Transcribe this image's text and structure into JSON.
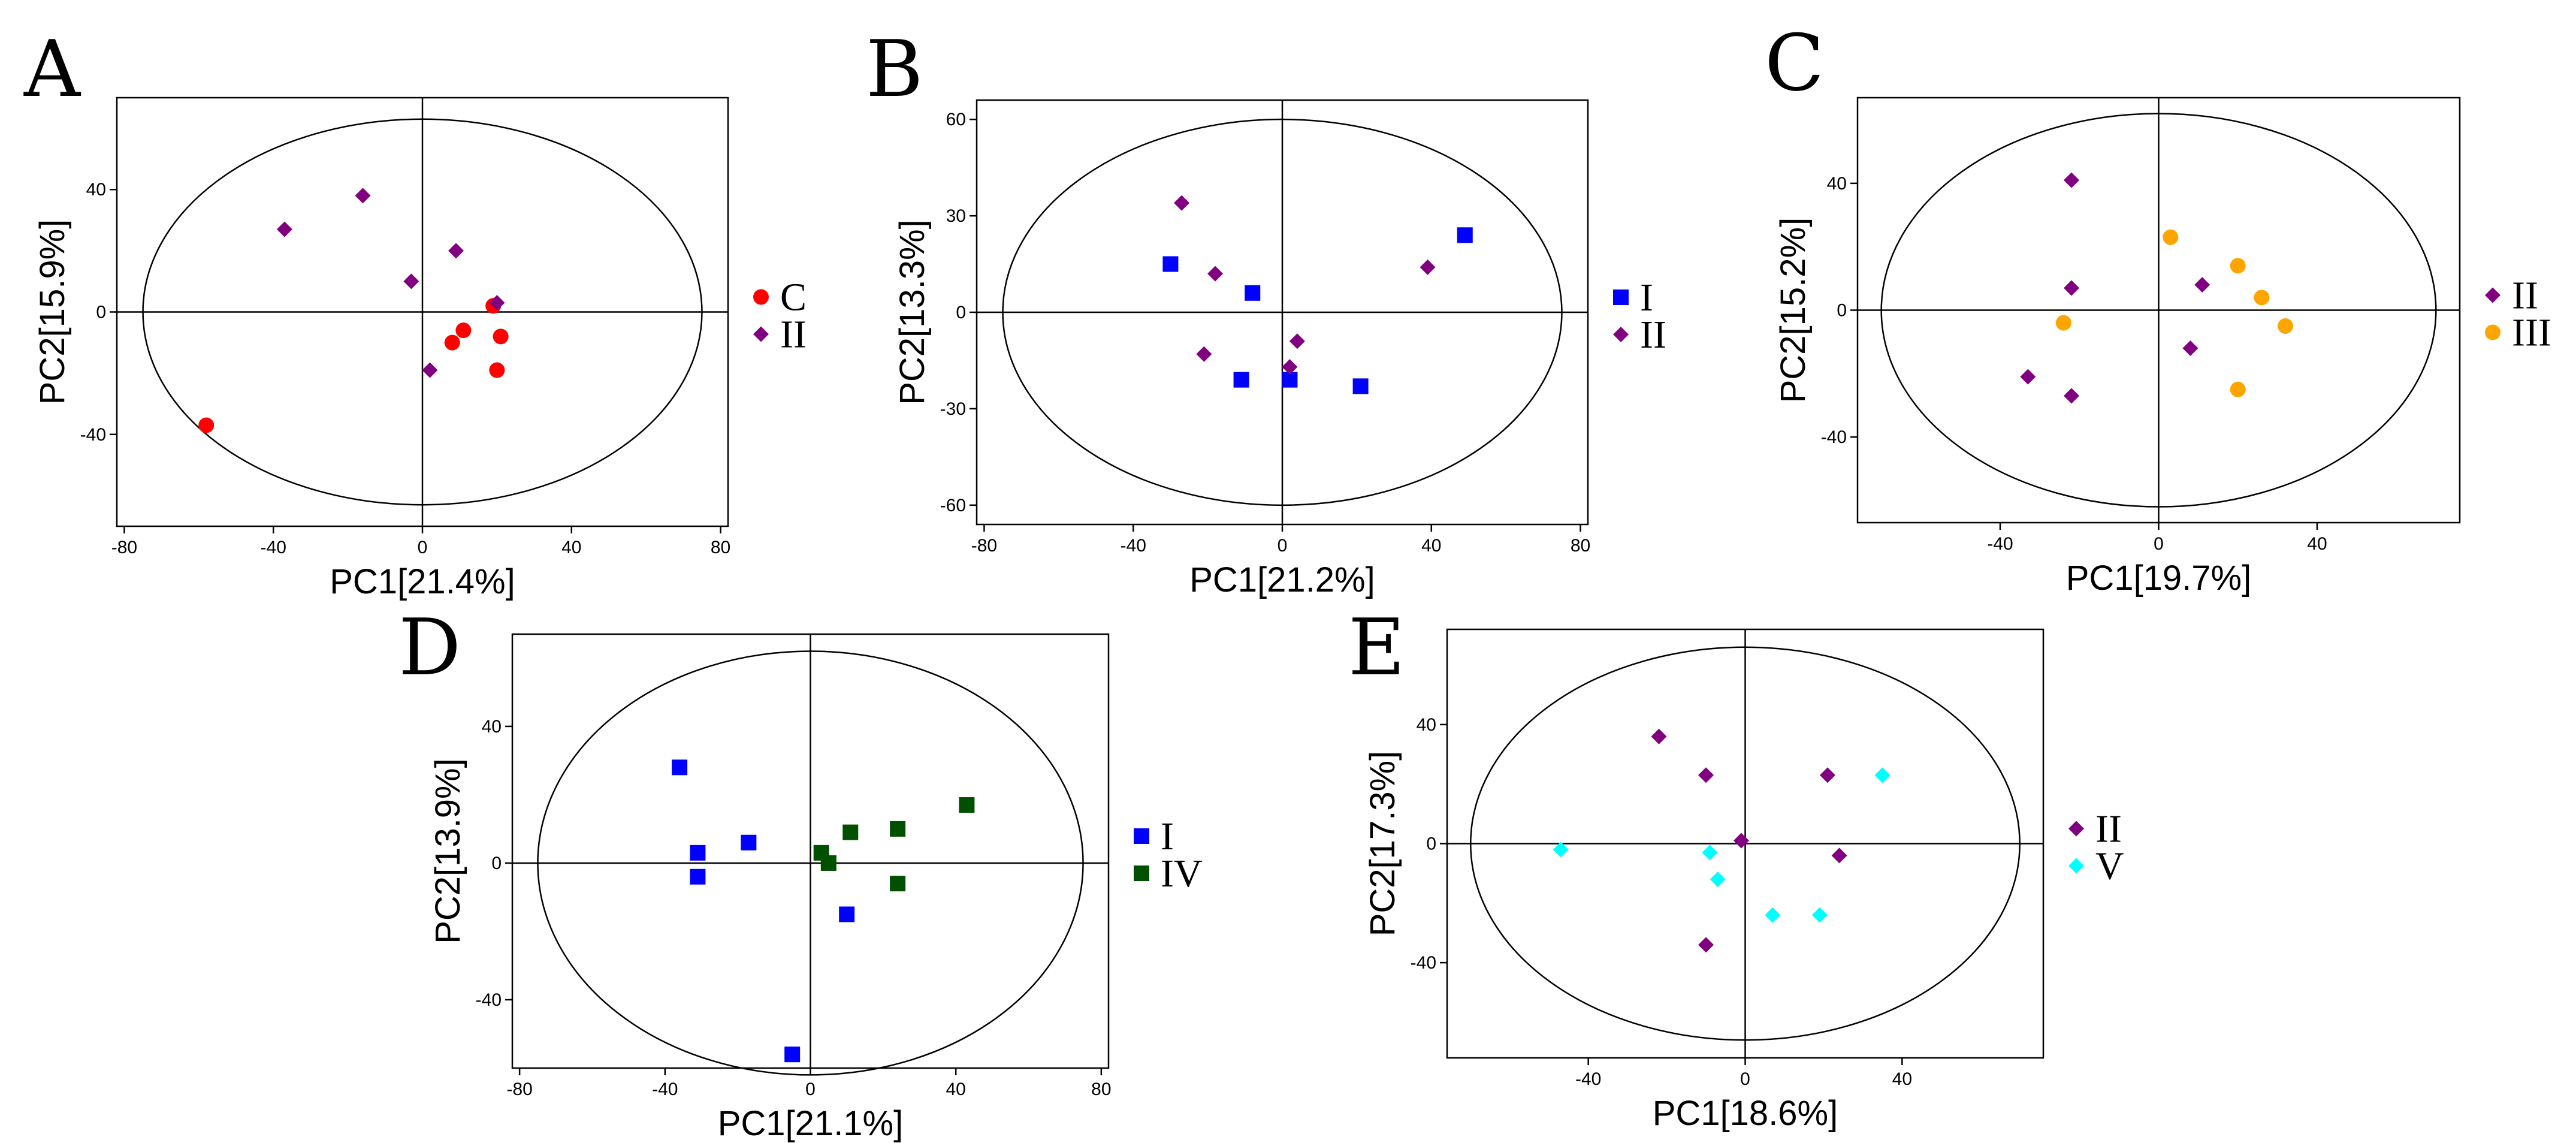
{
  "chart_data": [
    {
      "panel": "A",
      "type": "scatter",
      "xlabel": "PC1[21.4%]",
      "ylabel": "PC2[15.9%]",
      "xlim": [
        -82,
        82
      ],
      "ylim": [
        -70,
        70
      ],
      "xticks": [
        -80,
        -40,
        0,
        40,
        80
      ],
      "yticks": [
        -40,
        0,
        40
      ],
      "ellipse": {
        "rx": 75,
        "ry": 63
      },
      "legend_position": "right",
      "series": [
        {
          "name": "C",
          "marker": "circle",
          "color": "#ff0000",
          "points": [
            [
              -58,
              -37
            ],
            [
              8,
              -10
            ],
            [
              11,
              -6
            ],
            [
              19,
              2
            ],
            [
              20,
              -19
            ],
            [
              21,
              -8
            ]
          ]
        },
        {
          "name": "II",
          "marker": "diamond",
          "color": "#800080",
          "points": [
            [
              -37,
              27
            ],
            [
              -16,
              38
            ],
            [
              -3,
              10
            ],
            [
              2,
              -19
            ],
            [
              9,
              20
            ],
            [
              20,
              3
            ]
          ]
        }
      ]
    },
    {
      "panel": "B",
      "type": "scatter",
      "xlabel": "PC1[21.2%]",
      "ylabel": "PC2[13.3%]",
      "xlim": [
        -82,
        82
      ],
      "ylim": [
        -66,
        66
      ],
      "xticks": [
        -80,
        -40,
        0,
        40,
        80
      ],
      "yticks": [
        -60,
        -30,
        0,
        30,
        60
      ],
      "ellipse": {
        "rx": 75,
        "ry": 60
      },
      "legend_position": "right",
      "series": [
        {
          "name": "I",
          "marker": "square",
          "color": "#0000ff",
          "points": [
            [
              -30,
              15
            ],
            [
              -8,
              6
            ],
            [
              -11,
              -21
            ],
            [
              2,
              -21
            ],
            [
              21,
              -23
            ],
            [
              49,
              24
            ]
          ]
        },
        {
          "name": "II",
          "marker": "diamond",
          "color": "#800080",
          "points": [
            [
              -27,
              34
            ],
            [
              -18,
              12
            ],
            [
              -21,
              -13
            ],
            [
              2,
              -17
            ],
            [
              4,
              -9
            ],
            [
              39,
              14
            ]
          ]
        }
      ]
    },
    {
      "panel": "C",
      "type": "scatter",
      "xlabel": "PC1[19.7%]",
      "ylabel": "PC2[15.2%]",
      "xlim": [
        -76,
        76
      ],
      "ylim": [
        -67,
        67
      ],
      "xticks": [
        -40,
        0,
        40
      ],
      "yticks": [
        -40,
        0,
        40
      ],
      "ellipse": {
        "rx": 70,
        "ry": 62
      },
      "legend_position": "right",
      "series": [
        {
          "name": "II",
          "marker": "diamond",
          "color": "#800080",
          "points": [
            [
              -22,
              41
            ],
            [
              -22,
              7
            ],
            [
              -33,
              -21
            ],
            [
              -22,
              -27
            ],
            [
              11,
              8
            ],
            [
              8,
              -12
            ]
          ]
        },
        {
          "name": "III",
          "marker": "circle",
          "color": "#ffa500",
          "points": [
            [
              -24,
              -4
            ],
            [
              3,
              23
            ],
            [
              20,
              14
            ],
            [
              26,
              4
            ],
            [
              32,
              -5
            ],
            [
              20,
              -25
            ]
          ]
        }
      ]
    },
    {
      "panel": "D",
      "type": "scatter",
      "xlabel": "PC1[21.1%]",
      "ylabel": "PC2[13.9%]",
      "xlim": [
        -82,
        82
      ],
      "ylim": [
        -60,
        67
      ],
      "xticks": [
        -80,
        -40,
        0,
        40,
        80
      ],
      "yticks": [
        -40,
        0,
        40
      ],
      "ellipse": {
        "rx": 75,
        "ry": 62
      },
      "legend_position": "right",
      "series": [
        {
          "name": "I",
          "marker": "square",
          "color": "#0000ff",
          "points": [
            [
              -36,
              28
            ],
            [
              -31,
              3
            ],
            [
              -31,
              -4
            ],
            [
              -17,
              6
            ],
            [
              10,
              -15
            ],
            [
              -5,
              -56
            ]
          ]
        },
        {
          "name": "IV",
          "marker": "square",
          "color": "#005000",
          "points": [
            [
              3,
              3
            ],
            [
              5,
              0
            ],
            [
              11,
              9
            ],
            [
              24,
              10
            ],
            [
              24,
              -6
            ],
            [
              43,
              17
            ]
          ]
        }
      ]
    },
    {
      "panel": "E",
      "type": "scatter",
      "xlabel": "PC1[18.6%]",
      "ylabel": "PC2[17.3%]",
      "xlim": [
        -76,
        76
      ],
      "ylim": [
        -72,
        72
      ],
      "xticks": [
        -40,
        0,
        40
      ],
      "yticks": [
        -40,
        0,
        40
      ],
      "ellipse": {
        "rx": 70,
        "ry": 66
      },
      "legend_position": "right",
      "series": [
        {
          "name": "II",
          "marker": "diamond",
          "color": "#800080",
          "points": [
            [
              -22,
              36
            ],
            [
              -10,
              23
            ],
            [
              -1,
              1
            ],
            [
              -10,
              -34
            ],
            [
              21,
              23
            ],
            [
              24,
              -4
            ]
          ]
        },
        {
          "name": "V",
          "marker": "diamond",
          "color": "#00ffff",
          "points": [
            [
              -47,
              -2
            ],
            [
              -9,
              -3
            ],
            [
              -7,
              -12
            ],
            [
              7,
              -24
            ],
            [
              19,
              -24
            ],
            [
              35,
              23
            ]
          ]
        }
      ]
    }
  ]
}
